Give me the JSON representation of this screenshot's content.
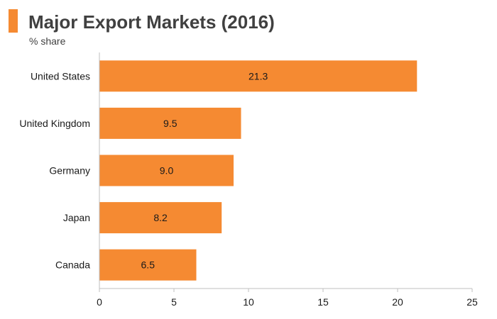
{
  "header": {
    "title": "Major Export Markets (2016)",
    "subtitle": "% share"
  },
  "colors": {
    "accent": "#F58A32",
    "bar": "#F58A32",
    "axis": "#bfbfbf",
    "text": "#1a1a1a"
  },
  "chart_data": {
    "type": "bar",
    "orientation": "horizontal",
    "title": "Major Export Markets (2016)",
    "subtitle": "% share",
    "categories": [
      "United States",
      "United Kingdom",
      "Germany",
      "Japan",
      "Canada"
    ],
    "values": [
      21.3,
      9.5,
      9.0,
      8.2,
      6.5
    ],
    "data_labels": [
      "21.3",
      "9.5",
      "9.0",
      "8.2",
      "6.5"
    ],
    "xlim": [
      0,
      25
    ],
    "xticks": [
      0,
      5,
      10,
      15,
      20,
      25
    ],
    "xlabel": "",
    "ylabel": "",
    "grid": false,
    "legend": "none"
  }
}
